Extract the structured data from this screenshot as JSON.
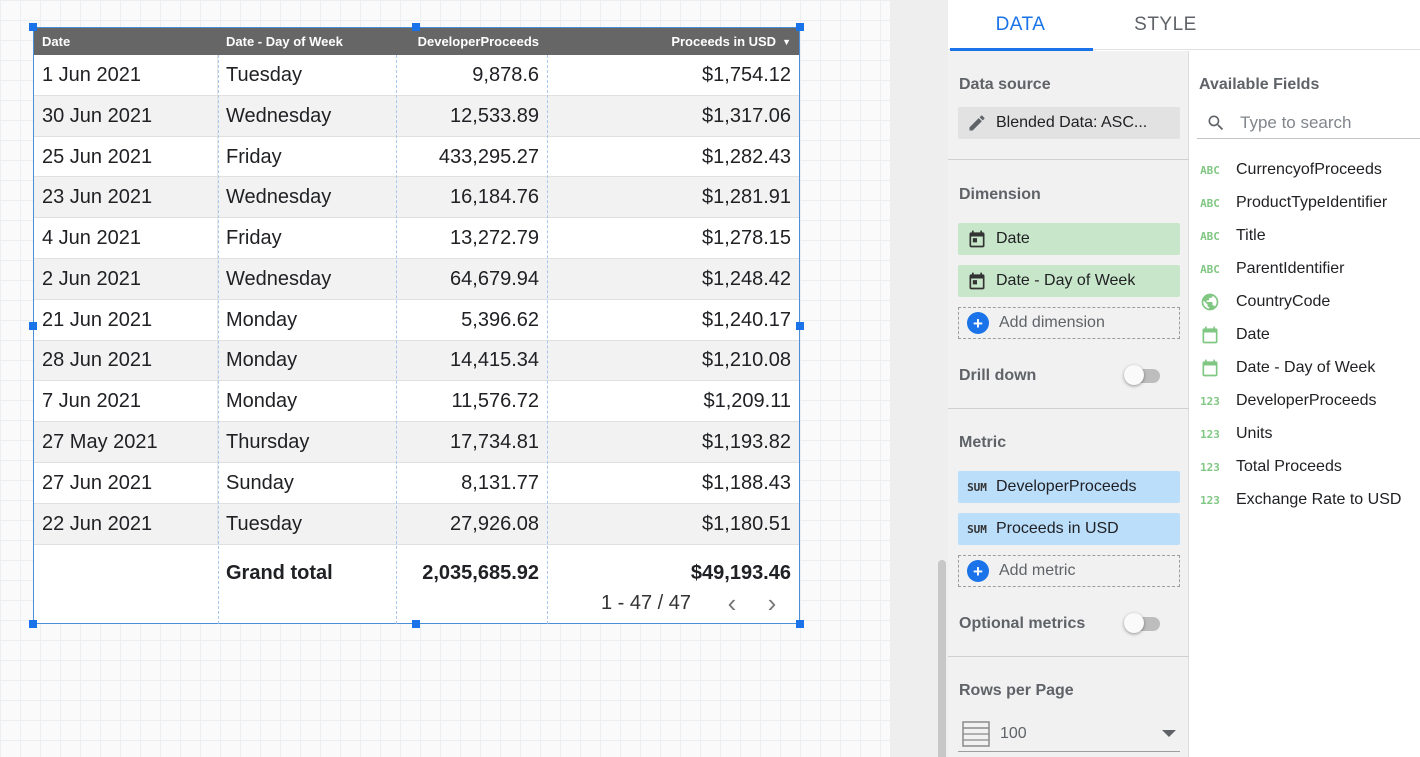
{
  "table": {
    "headers": [
      "Date",
      "Date - Day of Week",
      "DeveloperProceeds",
      "Proceeds in USD"
    ],
    "rows": [
      [
        "1 Jun 2021",
        "Tuesday",
        "9,878.6",
        "$1,754.12"
      ],
      [
        "30 Jun 2021",
        "Wednesday",
        "12,533.89",
        "$1,317.06"
      ],
      [
        "25 Jun 2021",
        "Friday",
        "433,295.27",
        "$1,282.43"
      ],
      [
        "23 Jun 2021",
        "Wednesday",
        "16,184.76",
        "$1,281.91"
      ],
      [
        "4 Jun 2021",
        "Friday",
        "13,272.79",
        "$1,278.15"
      ],
      [
        "2 Jun 2021",
        "Wednesday",
        "64,679.94",
        "$1,248.42"
      ],
      [
        "21 Jun 2021",
        "Monday",
        "5,396.62",
        "$1,240.17"
      ],
      [
        "28 Jun 2021",
        "Monday",
        "14,415.34",
        "$1,210.08"
      ],
      [
        "7 Jun 2021",
        "Monday",
        "11,576.72",
        "$1,209.11"
      ],
      [
        "27 May 2021",
        "Thursday",
        "17,734.81",
        "$1,193.82"
      ],
      [
        "27 Jun 2021",
        "Sunday",
        "8,131.77",
        "$1,188.43"
      ],
      [
        "22 Jun 2021",
        "Tuesday",
        "27,926.08",
        "$1,180.51"
      ]
    ],
    "grand_total": {
      "label": "Grand total",
      "developer_proceeds": "2,035,685.92",
      "proceeds_usd": "$49,193.46"
    },
    "pagination": "1 - 47 / 47"
  },
  "panel": {
    "tabs": [
      "DATA",
      "STYLE"
    ],
    "data_source": {
      "title": "Data source",
      "value": "Blended Data: ASC..."
    },
    "dimension": {
      "title": "Dimension",
      "items": [
        "Date",
        "Date - Day of Week"
      ],
      "add": "Add dimension"
    },
    "drill_down": "Drill down",
    "metric": {
      "title": "Metric",
      "aggregation": "SUM",
      "items": [
        "DeveloperProceeds",
        "Proceeds in USD"
      ],
      "add": "Add metric"
    },
    "optional_metrics": "Optional metrics",
    "rows_per_page": {
      "title": "Rows per Page",
      "value": "100"
    }
  },
  "fields": {
    "title": "Available Fields",
    "search_placeholder": "Type to search",
    "items": [
      {
        "type": "ABC",
        "name": "CurrencyofProceeds"
      },
      {
        "type": "ABC",
        "name": "ProductTypeIdentifier"
      },
      {
        "type": "ABC",
        "name": "Title"
      },
      {
        "type": "ABC",
        "name": "ParentIdentifier"
      },
      {
        "type": "geo",
        "name": "CountryCode"
      },
      {
        "type": "date",
        "name": "Date"
      },
      {
        "type": "date",
        "name": "Date - Day of Week"
      },
      {
        "type": "123",
        "name": "DeveloperProceeds"
      },
      {
        "type": "123",
        "name": "Units"
      },
      {
        "type": "123",
        "name": "Total Proceeds"
      },
      {
        "type": "123",
        "name": "Exchange Rate to USD"
      }
    ]
  },
  "colors": {
    "accent": "#1a73e8",
    "dimension_chip": "#c8e6c9",
    "metric_chip": "#bbdefb",
    "header": "#666666"
  }
}
